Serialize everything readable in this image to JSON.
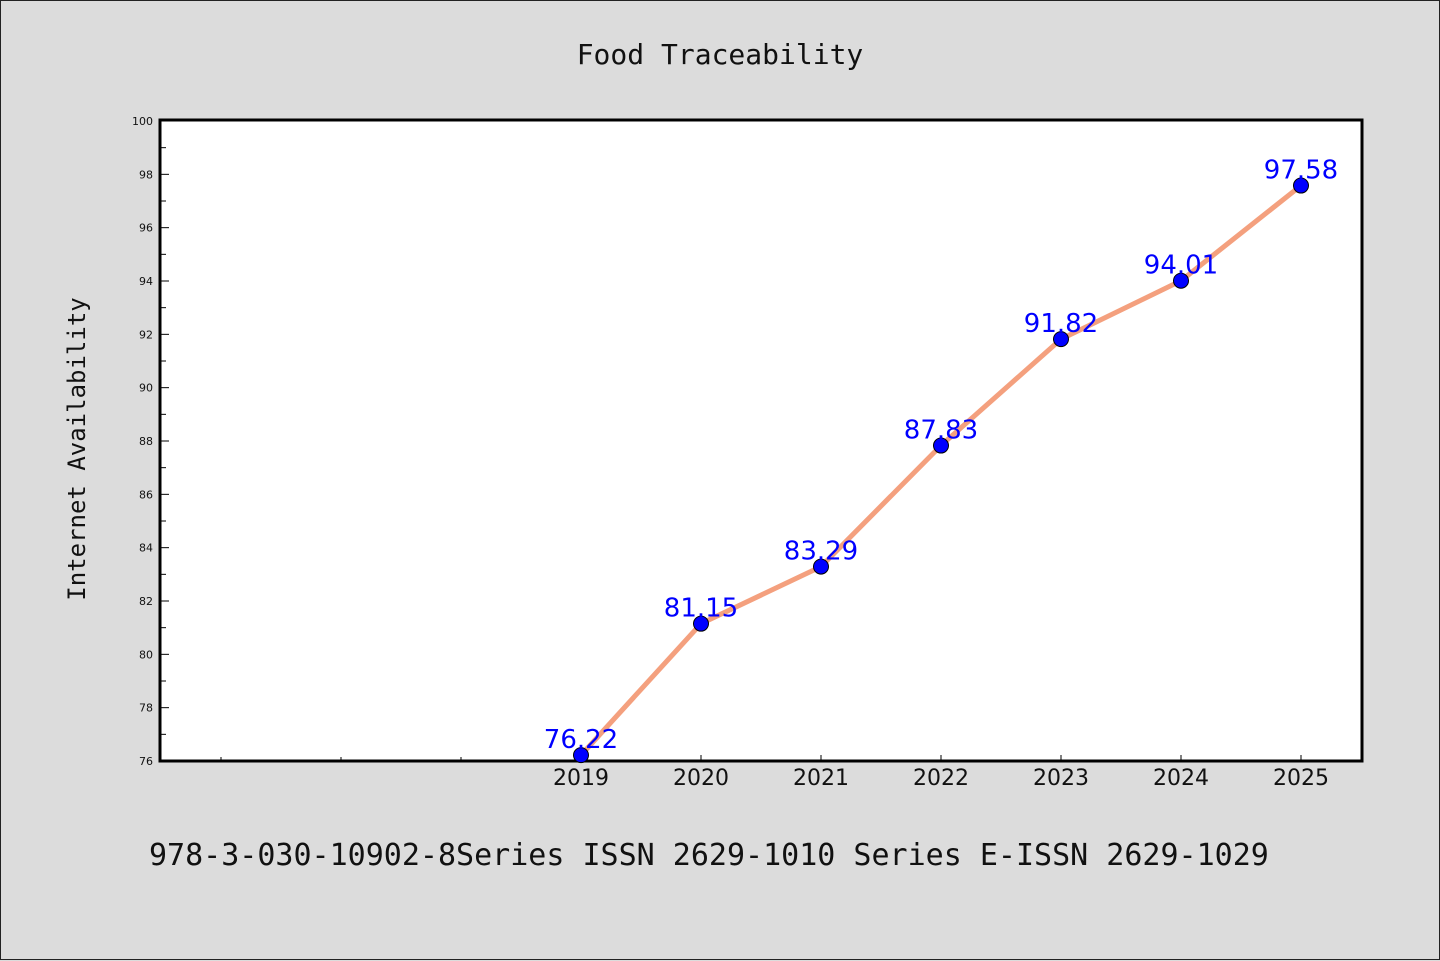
{
  "chart_data": {
    "type": "line",
    "title": "Food Traceability",
    "xlabel": "",
    "ylabel": "Internet Availability",
    "categories": [
      "2019",
      "2020",
      "2021",
      "2022",
      "2023",
      "2024",
      "2025"
    ],
    "series": [
      {
        "values": [
          76.22,
          81.15,
          83.29,
          87.83,
          91.82,
          94.01,
          97.58
        ],
        "data_labels": [
          "76.22",
          "81.15",
          "83.29",
          "87.83",
          "91.82",
          "94.01",
          "97.58"
        ]
      }
    ],
    "ylim": [
      76,
      100
    ],
    "yticks": [
      "76",
      "78",
      "80",
      "82",
      "84",
      "86",
      "88",
      "90",
      "92",
      "94",
      "96",
      "98",
      "100"
    ],
    "grid": false,
    "legend": "none",
    "colors": {
      "line": "#f4a07e",
      "marker": "#0000ff",
      "label": "#0000ff",
      "background": "#dcdcdc",
      "plot_bg": "#ffffff"
    }
  },
  "footer": "978-3-030-10902-8Series ISSN 2629-1010 Series E-ISSN 2629-1029"
}
